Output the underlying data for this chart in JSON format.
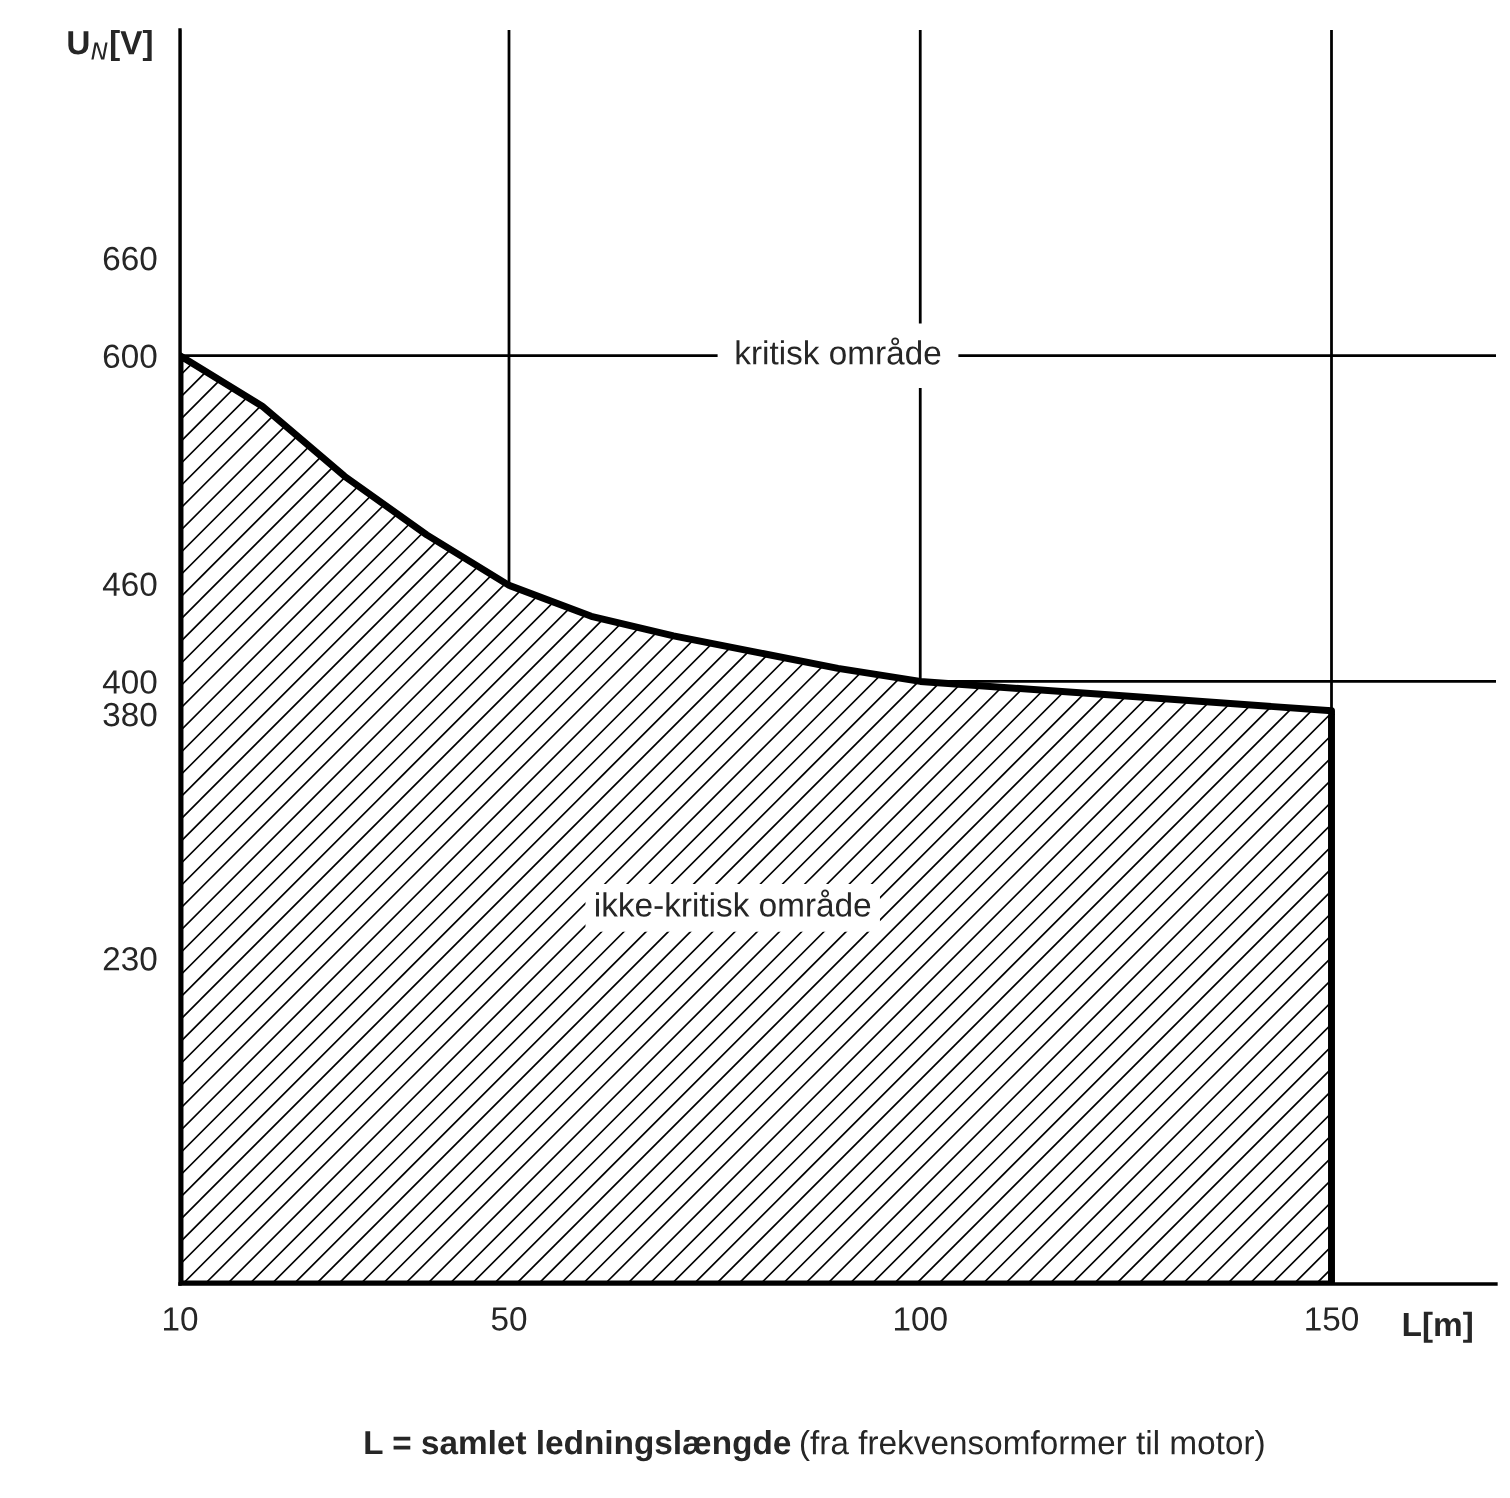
{
  "chart_data": {
    "type": "area",
    "x": [
      10,
      20,
      30,
      40,
      50,
      60,
      70,
      80,
      90,
      100,
      125,
      150
    ],
    "series": [
      {
        "color": "#000000",
        "values": [
          600,
          569,
          526,
          490,
          459,
          440,
          428,
          418,
          408,
          400,
          391,
          382
        ]
      }
    ],
    "xlim": [
      10,
      170
    ],
    "xticks": [
      10,
      50,
      100,
      150
    ],
    "ylim": [
      30,
      800
    ],
    "yticks": [
      230,
      380,
      400,
      460,
      600,
      660
    ],
    "xlabel": "L[m]",
    "ylabel": "U$_{N}$[V]",
    "grid": "x",
    "ref_lines": [
      {
        "axis": "y",
        "value": 600,
        "label": "kritisk område"
      },
      {
        "axis": "y",
        "value": 400
      }
    ],
    "annotations": [
      "ikke-kritisk område",
      "L = samlet ledningslængde",
      "(fra frekvensomformer til motor)"
    ]
  }
}
